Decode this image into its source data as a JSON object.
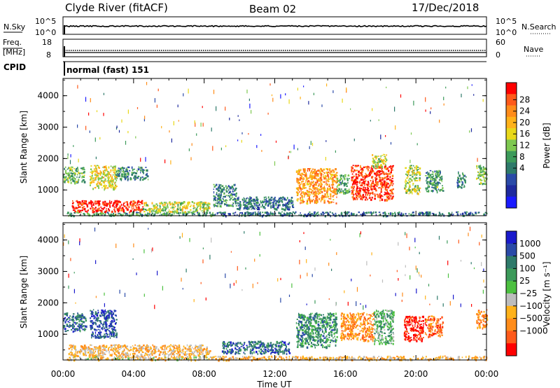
{
  "header": {
    "station": "Clyde River (fitACF)",
    "beam": "Beam 02",
    "date": "17/Dec/2018"
  },
  "top_panels": {
    "nsky_label": "N.Sky",
    "nsky_ticks": [
      "10^5",
      "10^0"
    ],
    "nsearch_label": "N.Search",
    "nsearch_ticks": [
      "10^5",
      "10^0"
    ],
    "freq_label": "Freq.",
    "freq_unit": "[MHz]",
    "freq_ticks": [
      "18",
      "8"
    ],
    "nave_label": "Nave",
    "nave_ticks": [
      "60",
      "0"
    ],
    "cpid_label": "CPID",
    "cpid_text": "normal (fast) 151"
  },
  "colors": {
    "red": "#ff1a1a",
    "orange_red": "#ff5a1a",
    "orange": "#ff8c1a",
    "amber": "#ffb21a",
    "yellow": "#e8d81a",
    "green_light": "#7ec850",
    "green_mid": "#3c9a5a",
    "green_dark": "#2e7a6a",
    "blue_mid": "#2040c0",
    "blue_dark": "#1e2a9e",
    "gray": "#bdbdbd"
  },
  "chart_data": [
    {
      "type": "heatmap",
      "name": "power-panel",
      "ylabel": "Slant Range [km]",
      "yticks": [
        1000,
        2000,
        3000,
        4000
      ],
      "ylim": [
        180,
        4550
      ],
      "xlim": [
        0,
        24
      ],
      "colorbar": {
        "label": "Power [dB]",
        "ticks": [
          "28",
          "24",
          "20",
          "16",
          "12",
          "8",
          "4"
        ],
        "colors": [
          "#ff0000",
          "#ff5a1a",
          "#ff8c1a",
          "#ffb21a",
          "#e8d81a",
          "#7ec850",
          "#3c9a5a",
          "#2e7a6a",
          "#2a4aa8",
          "#1e2a9e",
          "#1a1aff"
        ]
      },
      "regions": [
        {
          "t0": 0.2,
          "t1": 8.6,
          "r0": 200,
          "r1": 320,
          "level": 0.4
        },
        {
          "t0": 0.5,
          "t1": 4.5,
          "r0": 320,
          "r1": 680,
          "level": 0.95
        },
        {
          "t0": 4.5,
          "t1": 8.3,
          "r0": 320,
          "r1": 650,
          "level": 0.55
        },
        {
          "t0": 0.0,
          "t1": 1.2,
          "r0": 1250,
          "r1": 1750,
          "level": 0.45
        },
        {
          "t0": 1.5,
          "t1": 3.0,
          "r0": 1050,
          "r1": 1800,
          "level": 0.6
        },
        {
          "t0": 3.0,
          "t1": 4.8,
          "r0": 1350,
          "r1": 1750,
          "level": 0.35
        },
        {
          "t0": 8.5,
          "t1": 9.8,
          "r0": 500,
          "r1": 1200,
          "level": 0.35
        },
        {
          "t0": 9.8,
          "t1": 13.0,
          "r0": 400,
          "r1": 800,
          "level": 0.3
        },
        {
          "t0": 13.2,
          "t1": 15.5,
          "r0": 600,
          "r1": 1700,
          "level": 0.75
        },
        {
          "t0": 15.5,
          "t1": 16.2,
          "r0": 900,
          "r1": 1500,
          "level": 0.4
        },
        {
          "t0": 16.3,
          "t1": 18.7,
          "r0": 700,
          "r1": 1800,
          "level": 0.9
        },
        {
          "t0": 17.5,
          "t1": 18.3,
          "r0": 1700,
          "r1": 2150,
          "level": 0.55
        },
        {
          "t0": 19.3,
          "t1": 20.2,
          "r0": 900,
          "r1": 1800,
          "level": 0.55
        },
        {
          "t0": 20.5,
          "t1": 21.5,
          "r0": 950,
          "r1": 1650,
          "level": 0.4
        },
        {
          "t0": 22.3,
          "t1": 22.8,
          "r0": 1100,
          "r1": 1600,
          "level": 0.35
        },
        {
          "t0": 23.4,
          "t1": 24.0,
          "r0": 1200,
          "r1": 1800,
          "level": 0.5
        },
        {
          "t0": 8.6,
          "t1": 24.0,
          "r0": 200,
          "r1": 320,
          "level": 0.3
        }
      ]
    },
    {
      "type": "heatmap",
      "name": "velocity-panel",
      "xlabel": "Time UT",
      "ylabel": "Slant Range [km]",
      "yticks": [
        1000,
        2000,
        3000,
        4000
      ],
      "ylim": [
        180,
        4550
      ],
      "xlim": [
        0,
        24
      ],
      "xticks": [
        "00:00",
        "04:00",
        "08:00",
        "12:00",
        "16:00",
        "20:00",
        "00:00"
      ],
      "colorbar": {
        "label": "Velocity [m s⁻¹]",
        "ticks": [
          "1000",
          "500",
          "100",
          "25",
          "−25",
          "−100",
          "−500",
          "−1000"
        ],
        "colors": [
          "#1a1acc",
          "#2a4aa8",
          "#2e7a6a",
          "#3c9a5a",
          "#4cc040",
          "#bdbdbd",
          "#ffb21a",
          "#ff8c1a",
          "#ff5a1a",
          "#ff0000"
        ]
      },
      "regions": [
        {
          "t0": 0.2,
          "t1": 8.6,
          "r0": 200,
          "r1": 320,
          "level": 0.4
        },
        {
          "t0": 0.3,
          "t1": 8.3,
          "r0": 320,
          "r1": 680,
          "level": 0.35
        },
        {
          "t0": 0.0,
          "t1": 1.3,
          "r0": 1100,
          "r1": 1700,
          "level": 0.8
        },
        {
          "t0": 1.5,
          "t1": 3.0,
          "r0": 900,
          "r1": 1800,
          "level": 0.85
        },
        {
          "t0": 9.0,
          "t1": 12.8,
          "r0": 400,
          "r1": 800,
          "level": 0.8
        },
        {
          "t0": 13.2,
          "t1": 15.5,
          "r0": 600,
          "r1": 1700,
          "level": 0.7
        },
        {
          "t0": 15.7,
          "t1": 17.6,
          "r0": 800,
          "r1": 1700,
          "level": 0.25
        },
        {
          "t0": 17.6,
          "t1": 18.7,
          "r0": 700,
          "r1": 1800,
          "level": 0.6
        },
        {
          "t0": 19.3,
          "t1": 20.4,
          "r0": 800,
          "r1": 1600,
          "level": 0.05
        },
        {
          "t0": 20.5,
          "t1": 21.5,
          "r0": 950,
          "r1": 1600,
          "level": 0.2
        },
        {
          "t0": 23.4,
          "t1": 24.0,
          "r0": 1200,
          "r1": 1800,
          "level": 0.25
        },
        {
          "t0": 8.6,
          "t1": 24.0,
          "r0": 200,
          "r1": 320,
          "level": 0.35
        }
      ]
    }
  ]
}
